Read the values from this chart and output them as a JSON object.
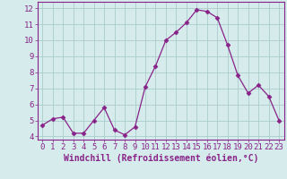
{
  "x": [
    0,
    1,
    2,
    3,
    4,
    5,
    6,
    7,
    8,
    9,
    10,
    11,
    12,
    13,
    14,
    15,
    16,
    17,
    18,
    19,
    20,
    21,
    22,
    23
  ],
  "y": [
    4.7,
    5.1,
    5.2,
    4.2,
    4.2,
    5.0,
    5.8,
    4.4,
    4.1,
    4.6,
    7.1,
    8.4,
    10.0,
    10.5,
    11.1,
    11.9,
    11.8,
    11.4,
    9.7,
    7.8,
    6.7,
    7.2,
    6.5,
    5.0
  ],
  "line_color": "#882288",
  "marker": "D",
  "marker_size": 2.5,
  "bg_color": "#d6ecec",
  "grid_color": "#aacccc",
  "xlabel": "Windchill (Refroidissement éolien,°C)",
  "ylabel_ticks": [
    4,
    5,
    6,
    7,
    8,
    9,
    10,
    11,
    12
  ],
  "xlim": [
    -0.5,
    23.5
  ],
  "ylim": [
    3.8,
    12.4
  ],
  "xtick_labels": [
    "0",
    "1",
    "2",
    "3",
    "4",
    "5",
    "6",
    "7",
    "8",
    "9",
    "10",
    "11",
    "12",
    "13",
    "14",
    "15",
    "16",
    "17",
    "18",
    "19",
    "20",
    "21",
    "22",
    "23"
  ],
  "xlabel_fontsize": 7,
  "tick_fontsize": 6.5
}
